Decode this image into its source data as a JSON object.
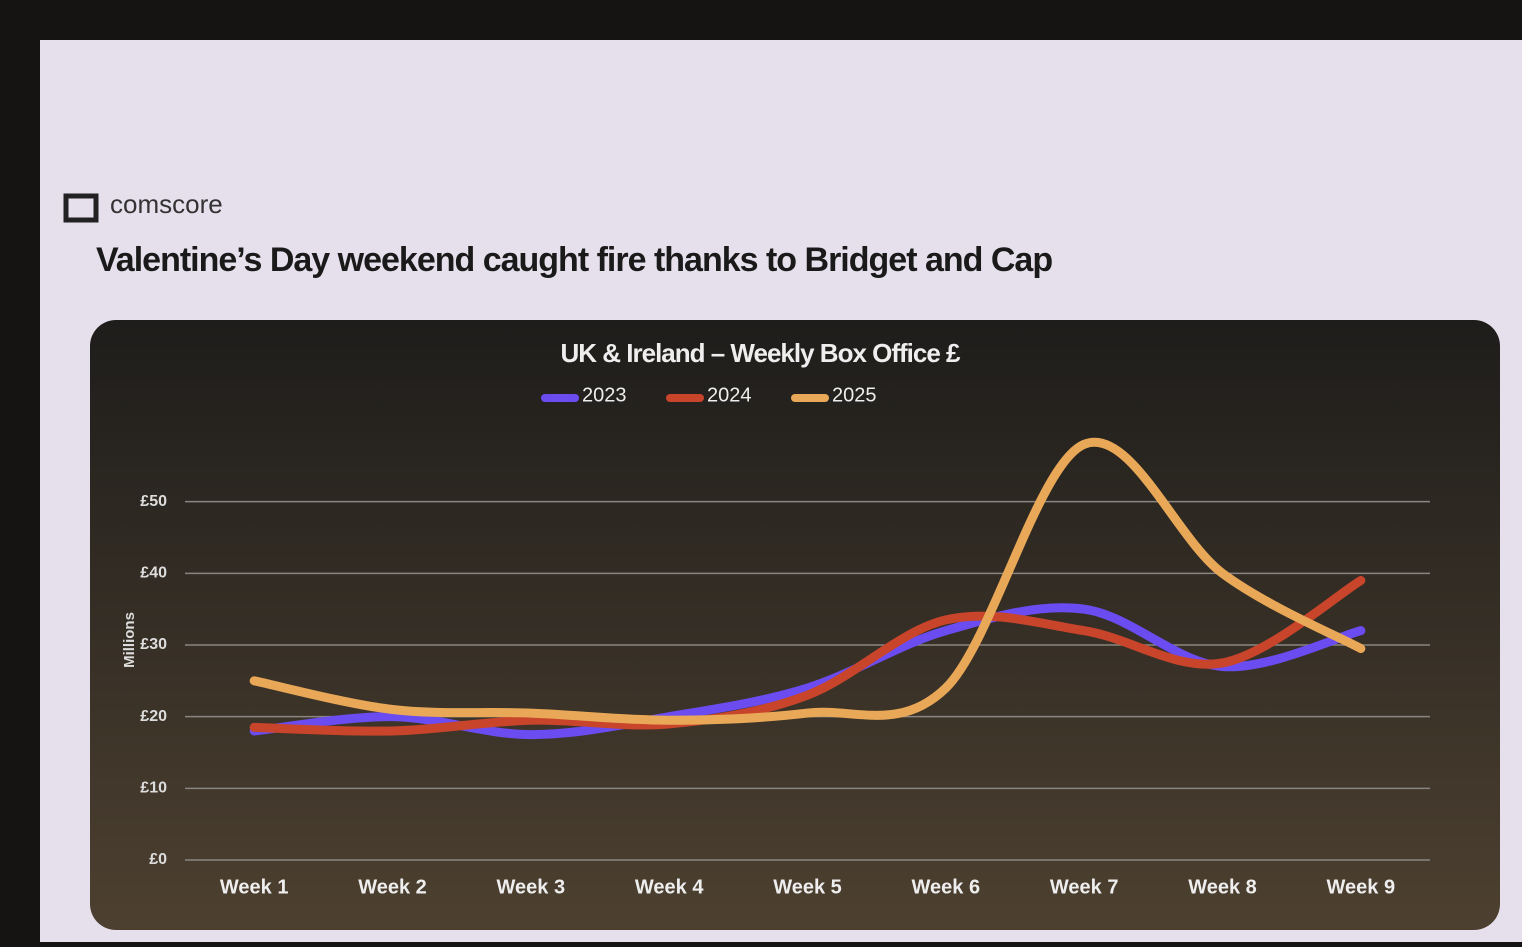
{
  "header": {
    "brand": "comscore",
    "title": "Valentine’s Day weekend caught fire thanks to Bridget and Cap"
  },
  "chart_data": {
    "type": "line",
    "title": "UK & Ireland – Weekly Box Office £",
    "y_label": "Millions",
    "categories": [
      "Week 1",
      "Week 2",
      "Week 3",
      "Week 4",
      "Week 5",
      "Week 6",
      "Week 7",
      "Week 8",
      "Week 9"
    ],
    "series": [
      {
        "name": "2023",
        "color": "#6a4cf0",
        "values": [
          18,
          20,
          17.5,
          20,
          24,
          32,
          35,
          27,
          32
        ]
      },
      {
        "name": "2024",
        "color": "#c8442a",
        "values": [
          18.5,
          18,
          19.5,
          19,
          23,
          33.5,
          32,
          27.5,
          39
        ]
      },
      {
        "name": "2025",
        "color": "#e8a857",
        "values": [
          25,
          21,
          20.5,
          19.5,
          20.5,
          24,
          58,
          40,
          29.5
        ]
      }
    ],
    "ylim": [
      0,
      60
    ],
    "yticks": [
      {
        "value": 0,
        "label": "£0"
      },
      {
        "value": 10,
        "label": "£10"
      },
      {
        "value": 20,
        "label": "£20"
      },
      {
        "value": 30,
        "label": "£30"
      },
      {
        "value": 40,
        "label": "£40"
      },
      {
        "value": 50,
        "label": "£50"
      }
    ],
    "grid": true,
    "smooth": true,
    "legend": "top"
  }
}
